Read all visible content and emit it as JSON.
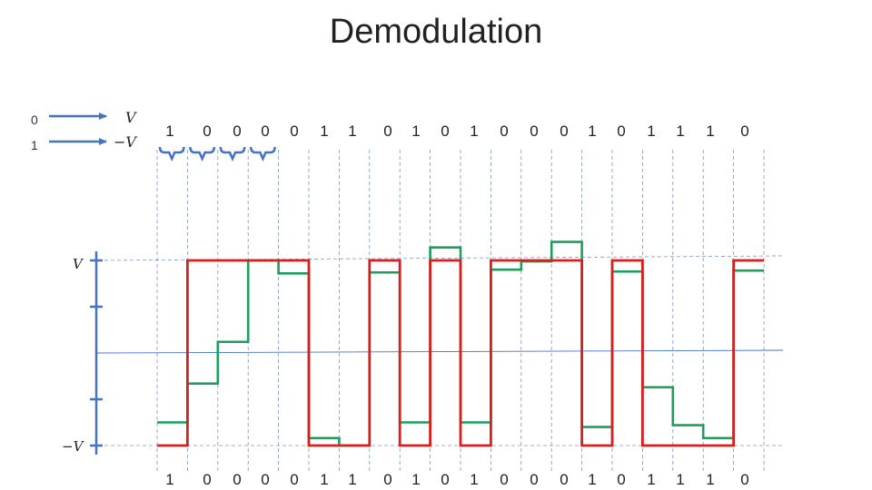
{
  "title": "Demodulation",
  "legend": {
    "zero_label": "0",
    "one_label": "1",
    "zero_symbol": "V",
    "one_symbol": "−V"
  },
  "axis": {
    "top_label": "V",
    "bottom_label": "−V"
  },
  "bits_top": [
    "1",
    "0",
    "0",
    "0",
    "0",
    "1",
    "1",
    "0",
    "1",
    "0",
    "1",
    "0",
    "0",
    "0",
    "1",
    "0",
    "1",
    "1",
    "1",
    "0"
  ],
  "bits_bottom": [
    "1",
    "0",
    "0",
    "0",
    "0",
    "1",
    "1",
    "0",
    "1",
    "0",
    "1",
    "0",
    "0",
    "0",
    "1",
    "0",
    "1",
    "1",
    "1",
    "0"
  ],
  "colors": {
    "red_signal": "#d91e1e",
    "green_signal": "#1aa05a",
    "axis_blue": "#4472c4",
    "grid": "#8096b8"
  },
  "chart_data": {
    "type": "line",
    "title": "Demodulation",
    "y_scale": "V",
    "ylim": [
      -1,
      1
    ],
    "symbols": 20,
    "series": [
      {
        "values": [
          -1,
          1,
          1,
          1,
          1,
          -1,
          -1,
          1,
          -1,
          1,
          -1,
          1,
          1,
          1,
          -1,
          1,
          -1,
          -1,
          -1,
          1
        ]
      },
      {
        "values": [
          -0.75,
          -0.33,
          0.12,
          1.0,
          0.86,
          -0.92,
          -1.0,
          0.87,
          -0.75,
          1.14,
          -0.75,
          0.9,
          0.99,
          1.2,
          -0.8,
          0.88,
          -0.37,
          -0.78,
          -0.92,
          0.89
        ]
      }
    ]
  }
}
